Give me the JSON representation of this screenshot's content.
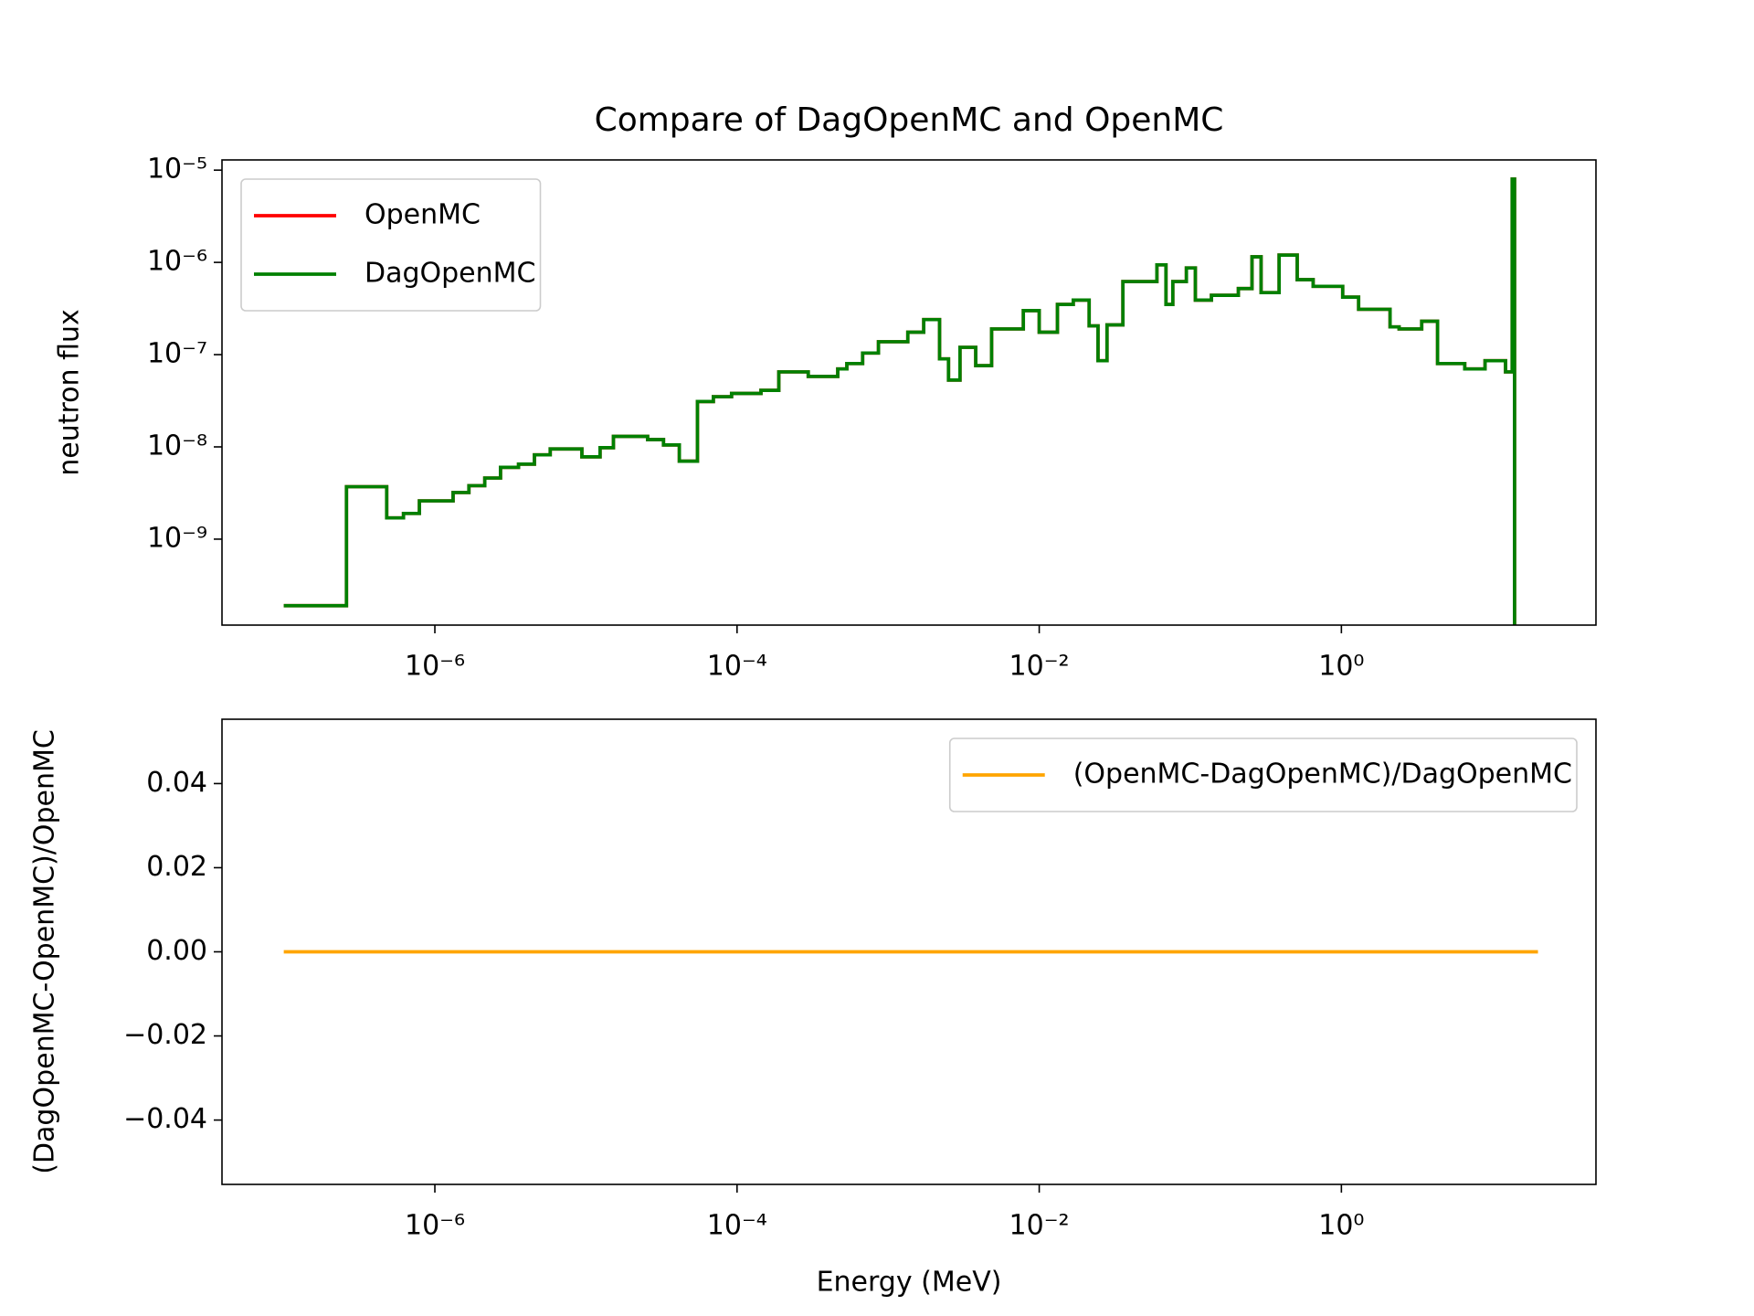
{
  "chart_data": [
    {
      "type": "line",
      "title": "Compare of DagOpenMC and OpenMC",
      "ylabel": "neutron flux",
      "xscale": "log",
      "yscale": "log",
      "drawstyle": "steps-post",
      "legend": "upper left",
      "xlim": [
        3.9e-08,
        48.4
      ],
      "ylim": [
        1.17e-10,
        1.29e-05
      ],
      "xticks": [
        {
          "value": 1e-06,
          "label": "10⁻⁶"
        },
        {
          "value": 0.0001,
          "label": "10⁻⁴"
        },
        {
          "value": 0.01,
          "label": "10⁻²"
        },
        {
          "value": 1,
          "label": "10⁰"
        }
      ],
      "yticks": [
        {
          "value": 1e-09,
          "label": "10⁻⁹"
        },
        {
          "value": 1e-08,
          "label": "10⁻⁸"
        },
        {
          "value": 1e-07,
          "label": "10⁻⁷"
        },
        {
          "value": 1e-06,
          "label": "10⁻⁶"
        },
        {
          "value": 1e-05,
          "label": "10⁻⁵"
        }
      ],
      "x": [
        1e-07,
        2.6e-07,
        4.8e-07,
        6.2e-07,
        7.9e-07,
        1.32e-06,
        1.68e-06,
        2.14e-06,
        2.72e-06,
        3.58e-06,
        4.56e-06,
        5.8e-06,
        9.4e-06,
        1.24e-05,
        1.52e-05,
        2.56e-05,
        3.26e-05,
        4.15e-05,
        5.47e-05,
        6.97e-05,
        9.2e-05,
        0.000144,
        0.000189,
        0.000296,
        0.000464,
        0.000533,
        0.000678,
        0.000863,
        0.00135,
        0.00172,
        0.00219,
        0.00251,
        0.00299,
        0.0038,
        0.00484,
        0.00785,
        0.01,
        0.0132,
        0.0168,
        0.0214,
        0.0245,
        0.0281,
        0.0358,
        0.0601,
        0.069,
        0.0766,
        0.0942,
        0.108,
        0.138,
        0.208,
        0.256,
        0.294,
        0.387,
        0.51,
        0.65,
        1.02,
        1.3,
        2.1,
        2.41,
        3.4,
        4.33,
        6.55,
        8.93,
        12.2,
        13.5,
        14.0
      ],
      "series": [
        {
          "name": "OpenMC",
          "color": "#ff0000",
          "values": [
            1.9e-10,
            3.7e-09,
            1.7e-09,
            1.9e-09,
            2.6e-09,
            3.2e-09,
            3.8e-09,
            4.6e-09,
            6e-09,
            6.5e-09,
            8.2e-09,
            9.5e-09,
            7.8e-09,
            9.8e-09,
            1.3e-08,
            1.2e-08,
            1.05e-08,
            7e-09,
            3.1e-08,
            3.5e-08,
            3.8e-08,
            4.1e-08,
            6.5e-08,
            5.8e-08,
            7e-08,
            8e-08,
            1.04e-07,
            1.38e-07,
            1.75e-07,
            2.4e-07,
            9e-08,
            5.3e-08,
            1.2e-07,
            7.6e-08,
            1.9e-07,
            3e-07,
            1.75e-07,
            3.5e-07,
            3.9e-07,
            2.05e-07,
            8.6e-08,
            2.1e-07,
            6.2e-07,
            9.4e-07,
            3.5e-07,
            6.2e-07,
            8.7e-07,
            3.9e-07,
            4.4e-07,
            5.2e-07,
            1.15e-06,
            4.7e-07,
            1.2e-06,
            6.5e-07,
            5.5e-07,
            4.2e-07,
            3.1e-07,
            2e-07,
            1.9e-07,
            2.3e-07,
            8e-08,
            7e-08,
            8.6e-08,
            6.5e-08,
            8e-06,
            1e-10
          ]
        },
        {
          "name": "DagOpenMC",
          "color": "#008000",
          "values": [
            1.9e-10,
            3.7e-09,
            1.7e-09,
            1.9e-09,
            2.6e-09,
            3.2e-09,
            3.8e-09,
            4.6e-09,
            6e-09,
            6.5e-09,
            8.2e-09,
            9.5e-09,
            7.8e-09,
            9.8e-09,
            1.3e-08,
            1.2e-08,
            1.05e-08,
            7e-09,
            3.1e-08,
            3.5e-08,
            3.8e-08,
            4.1e-08,
            6.5e-08,
            5.8e-08,
            7e-08,
            8e-08,
            1.04e-07,
            1.38e-07,
            1.75e-07,
            2.4e-07,
            9e-08,
            5.3e-08,
            1.2e-07,
            7.6e-08,
            1.9e-07,
            3e-07,
            1.75e-07,
            3.5e-07,
            3.9e-07,
            2.05e-07,
            8.6e-08,
            2.1e-07,
            6.2e-07,
            9.4e-07,
            3.5e-07,
            6.2e-07,
            8.7e-07,
            3.9e-07,
            4.4e-07,
            5.2e-07,
            1.15e-06,
            4.7e-07,
            1.2e-06,
            6.5e-07,
            5.5e-07,
            4.2e-07,
            3.1e-07,
            2e-07,
            1.9e-07,
            2.3e-07,
            8e-08,
            7e-08,
            8.6e-08,
            6.5e-08,
            8e-06,
            1e-10
          ]
        }
      ]
    },
    {
      "type": "line",
      "xlabel": "Energy (MeV)",
      "ylabel": "(DagOpenMC-OpenMC)/OpenMC",
      "xscale": "log",
      "legend": "upper right",
      "xlim": [
        3.9e-08,
        48.4
      ],
      "ylim": [
        -0.0553,
        0.0553
      ],
      "xticks": [
        {
          "value": 1e-06,
          "label": "10⁻⁶"
        },
        {
          "value": 0.0001,
          "label": "10⁻⁴"
        },
        {
          "value": 0.01,
          "label": "10⁻²"
        },
        {
          "value": 1,
          "label": "10⁰"
        }
      ],
      "yticks": [
        {
          "value": -0.04,
          "label": "−0.04"
        },
        {
          "value": -0.02,
          "label": "−0.02"
        },
        {
          "value": 0,
          "label": "0.00"
        },
        0.02,
        0.04
      ],
      "x": [
        1e-07,
        20
      ],
      "series": [
        {
          "name": "(OpenMC-DagOpenMC)/DagOpenMC",
          "color": "#ffa500",
          "values": [
            0,
            0
          ]
        }
      ]
    }
  ]
}
